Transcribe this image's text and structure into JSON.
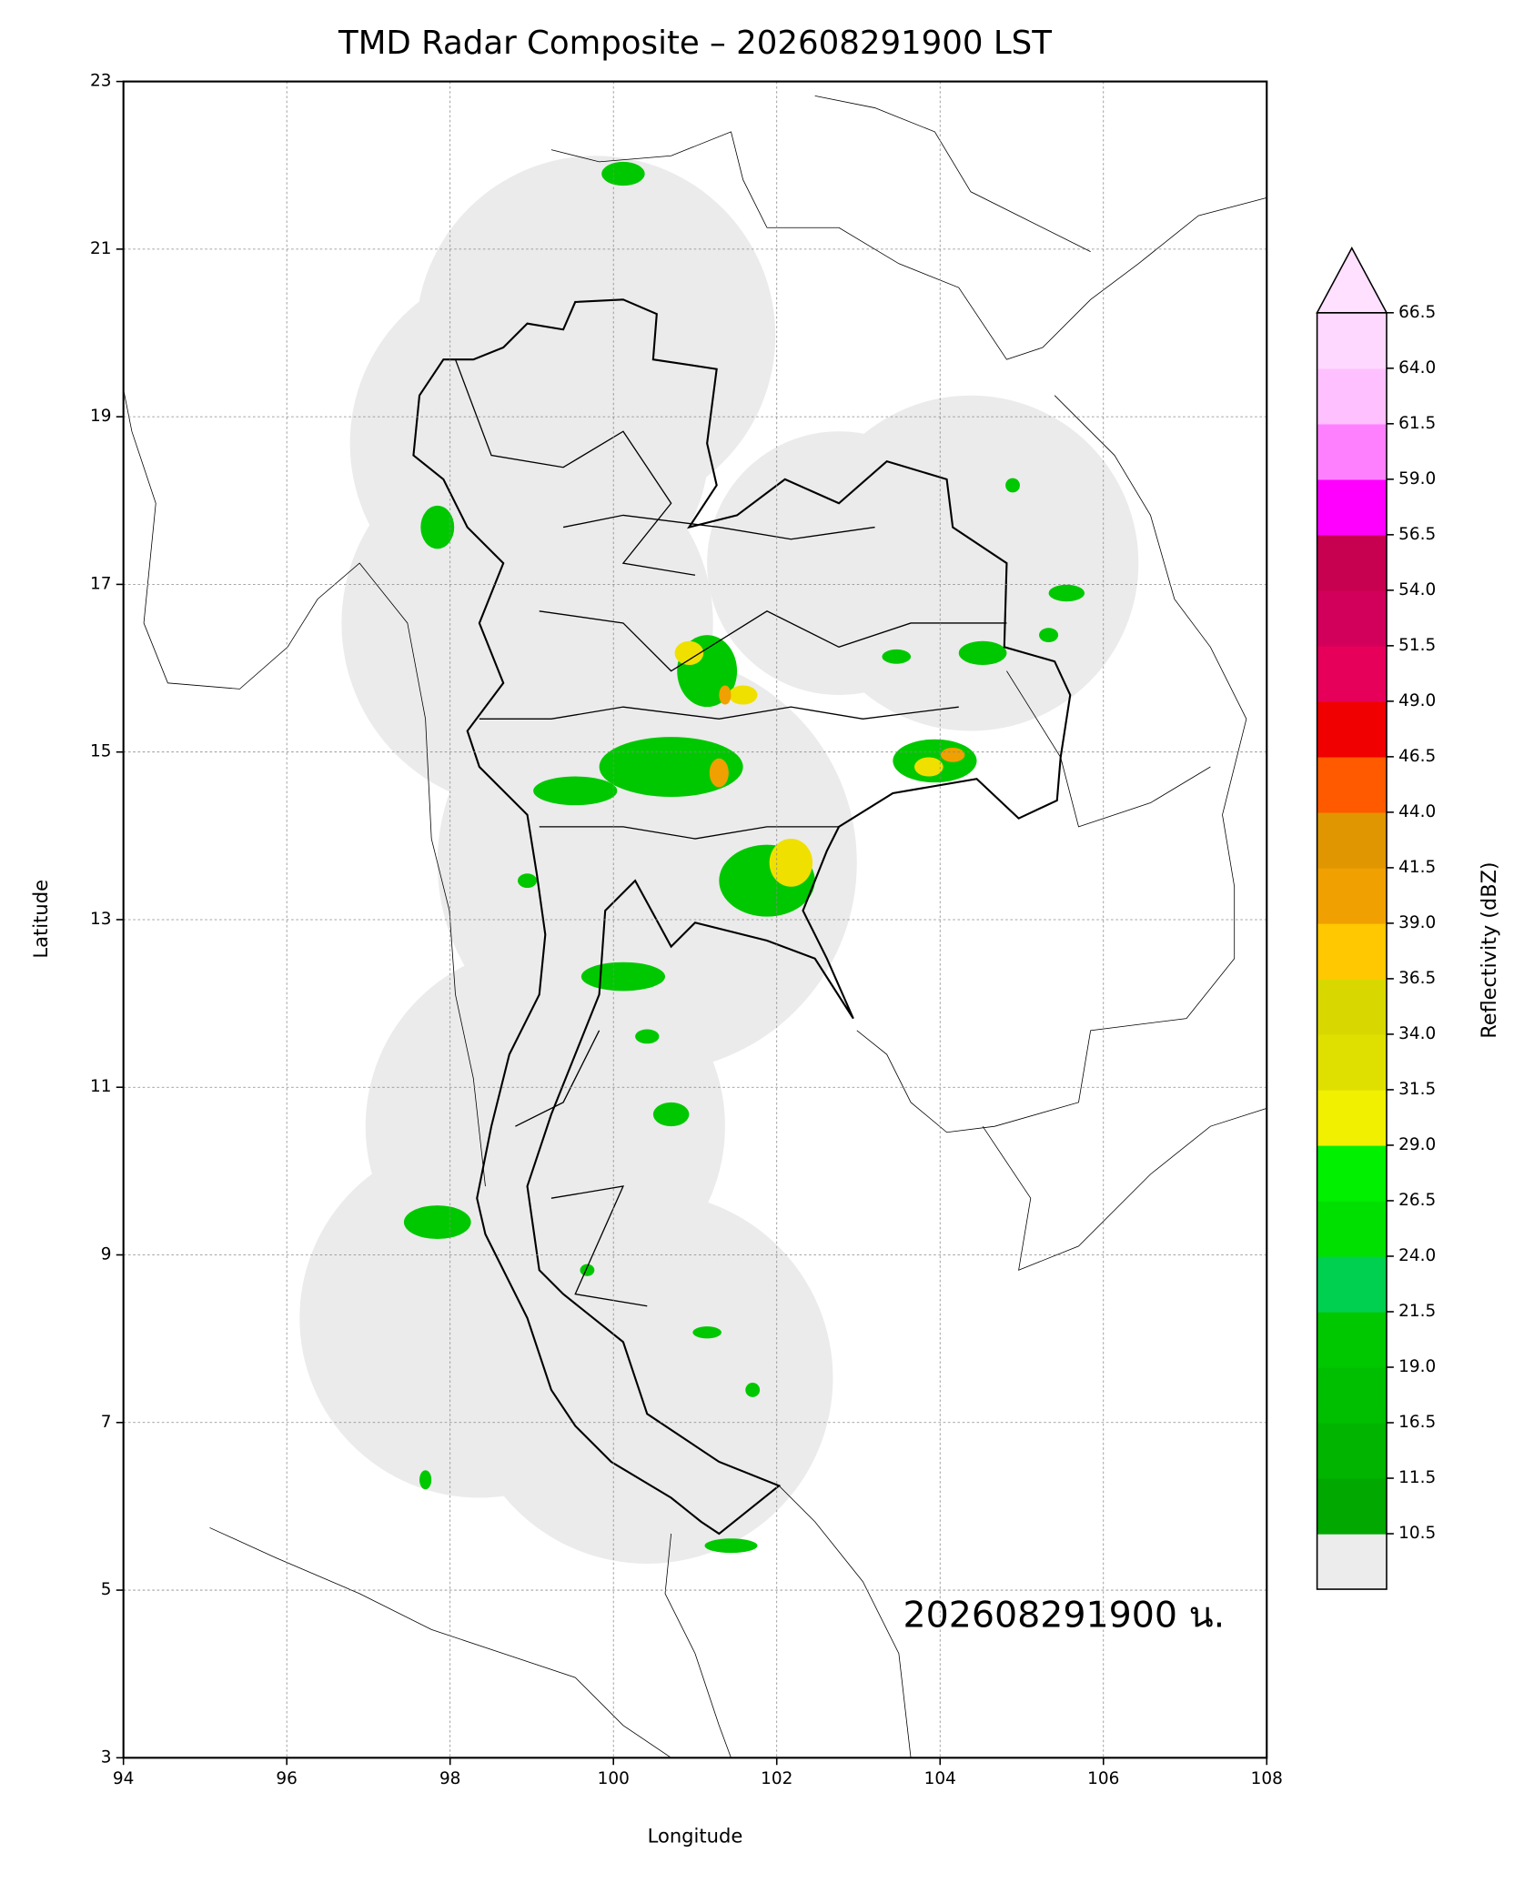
{
  "chart_data": {
    "type": "map",
    "title": "TMD Radar Composite – 202608291900 LST",
    "xlabel": "Longitude",
    "ylabel": "Latitude",
    "xlim": [
      94,
      108
    ],
    "ylim": [
      3,
      23
    ],
    "xticks": [
      94,
      96,
      98,
      100,
      102,
      104,
      106,
      108
    ],
    "yticks": [
      3,
      5,
      7,
      9,
      11,
      13,
      15,
      17,
      19,
      21,
      23
    ],
    "grid": true,
    "annotation": "202608291900 น.",
    "colorbar": {
      "label": "Reflectivity (dBZ)",
      "ticks": [
        10.5,
        11.5,
        16.5,
        {
          "value": 19,
          "label": "19.0"
        },
        21.5,
        {
          "value": 24,
          "label": "24.0"
        },
        26.5,
        {
          "value": 29,
          "label": "29.0"
        },
        31.5,
        {
          "value": 34,
          "label": "34.0"
        },
        36.5,
        {
          "value": 39,
          "label": "39.0"
        },
        41.5,
        {
          "value": 44,
          "label": "44.0"
        },
        46.5,
        {
          "value": 49,
          "label": "49.0"
        },
        51.5,
        {
          "value": 54,
          "label": "54.0"
        },
        56.5,
        {
          "value": 59,
          "label": "59.0"
        },
        61.5,
        {
          "value": 64,
          "label": "64.0"
        },
        66.5
      ],
      "colors": [
        "#00a800",
        "#00b400",
        "#00be00",
        "#00c800",
        "#00d050",
        "#00e000",
        "#00f000",
        "#f0f000",
        "#e0e000",
        "#d8d800",
        "#ffc800",
        "#f0a000",
        "#e09600",
        "#ff5a00",
        "#f00000",
        "#e6005a",
        "#d2005a",
        "#c80050",
        "#ff00ff",
        "#ff80ff",
        "#ffc0ff",
        "#ffd8ff"
      ],
      "under_color": "#ececec",
      "over_color": "#ffe0ff"
    }
  }
}
